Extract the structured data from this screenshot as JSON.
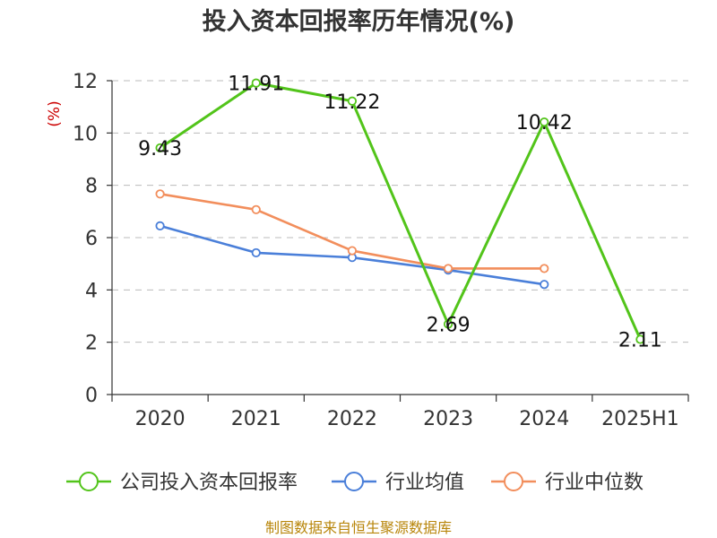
{
  "chart_data": {
    "type": "line",
    "title": "投入资本回报率历年情况(%)",
    "ylabel": "(%)",
    "xlabel": "",
    "categories": [
      "2020",
      "2021",
      "2022",
      "2023",
      "2024",
      "2025H1"
    ],
    "ylim": [
      0,
      12
    ],
    "yticks": [
      0,
      2,
      4,
      6,
      8,
      10,
      12
    ],
    "grid": true,
    "legend_position": "bottom",
    "series": [
      {
        "name": "公司投入资本回报率",
        "color": "#52c41a",
        "values": [
          9.43,
          11.91,
          11.22,
          2.69,
          10.42,
          2.11
        ],
        "labels": [
          "9.43",
          "11.91",
          "11.22",
          "2.69",
          "10.42",
          "2.11"
        ]
      },
      {
        "name": "行业均值",
        "color": "#4a7fd9",
        "values": [
          6.45,
          5.42,
          5.24,
          4.76,
          4.21,
          null
        ]
      },
      {
        "name": "行业中位数",
        "color": "#f28e5c",
        "values": [
          7.67,
          7.07,
          5.5,
          4.82,
          4.82,
          null
        ]
      }
    ]
  },
  "source": "制图数据来自恒生聚源数据库"
}
